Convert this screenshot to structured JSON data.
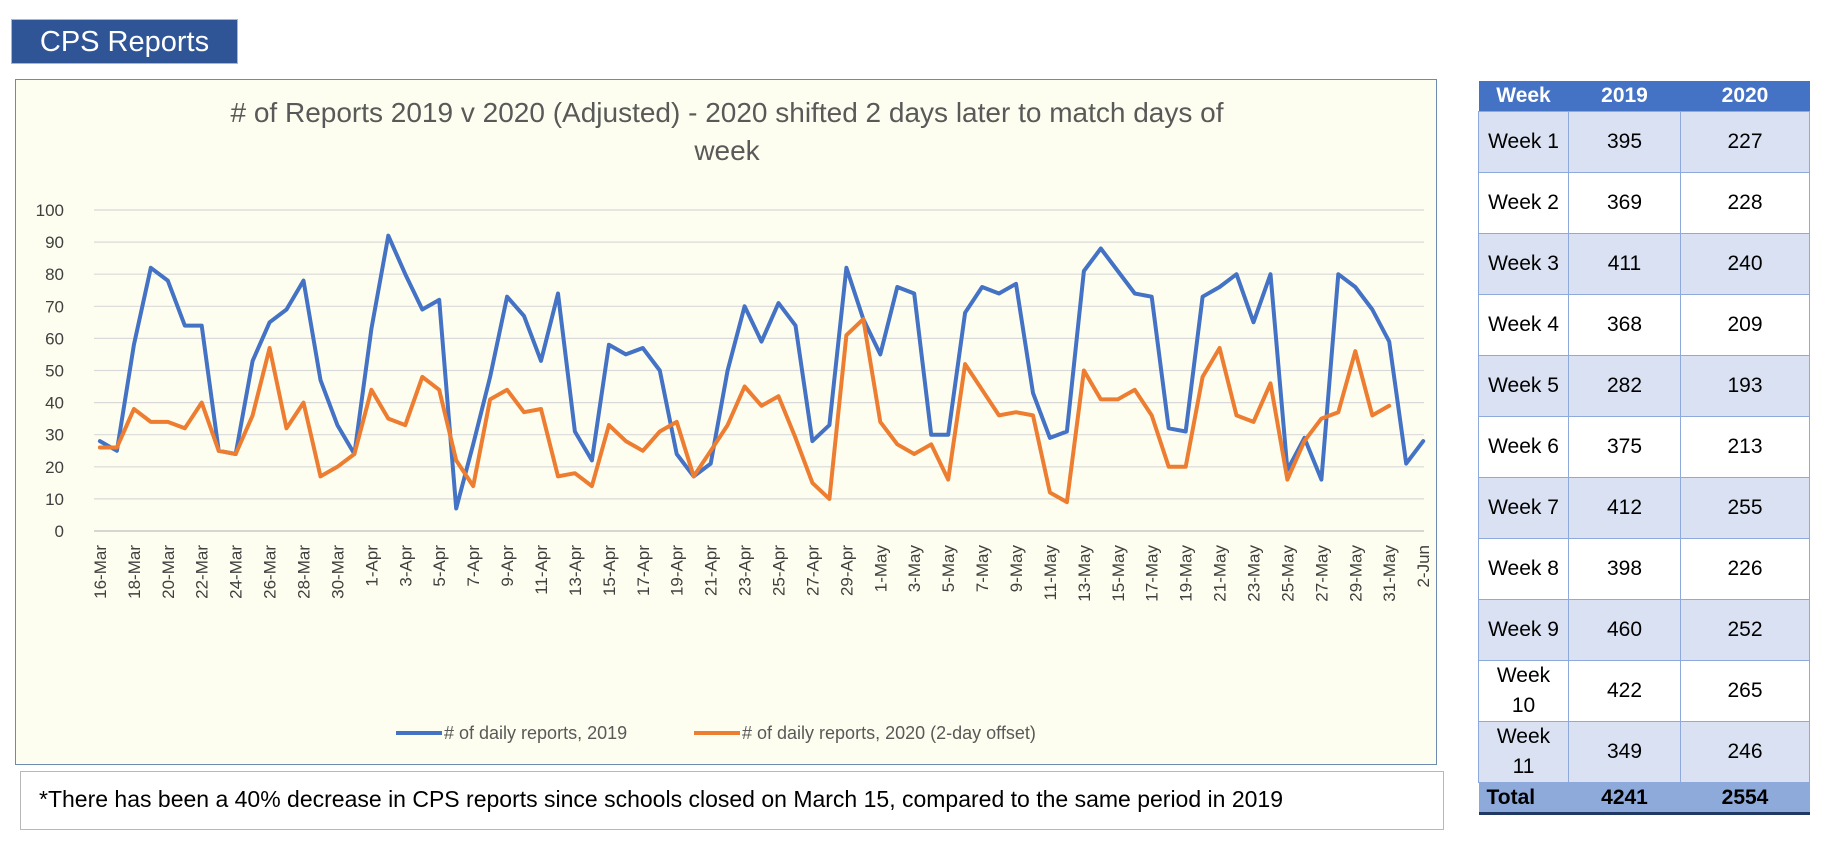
{
  "header": {
    "title": "CPS Reports"
  },
  "note": "*There has been a 40% decrease in CPS reports since schools closed on March 15, compared to the same period in 2019",
  "table": {
    "columns": [
      "Week",
      "2019",
      "2020"
    ],
    "rows": [
      {
        "week": "Week 1",
        "v2019": "395",
        "v2020": "227"
      },
      {
        "week": "Week 2",
        "v2019": "369",
        "v2020": "228"
      },
      {
        "week": "Week 3",
        "v2019": "411",
        "v2020": "240"
      },
      {
        "week": "Week 4",
        "v2019": "368",
        "v2020": "209"
      },
      {
        "week": "Week 5",
        "v2019": "282",
        "v2020": "193"
      },
      {
        "week": "Week 6",
        "v2019": "375",
        "v2020": "213"
      },
      {
        "week": "Week 7",
        "v2019": "412",
        "v2020": "255"
      },
      {
        "week": "Week 8",
        "v2019": "398",
        "v2020": "226"
      },
      {
        "week": "Week 9",
        "v2019": "460",
        "v2020": "252"
      },
      {
        "week": "Week 10",
        "v2019": "422",
        "v2020": "265"
      },
      {
        "week": "Week 11",
        "v2019": "349",
        "v2020": "246"
      }
    ],
    "total": {
      "label": "Total",
      "v2019": "4241",
      "v2020": "2554"
    }
  },
  "chart_data": {
    "type": "line",
    "title": "# of Reports 2019 v 2020 (Adjusted) - 2020 shifted 2 days later to match days of week",
    "ylim": [
      0,
      100
    ],
    "yticks": [
      0,
      10,
      20,
      30,
      40,
      50,
      60,
      70,
      80,
      90,
      100
    ],
    "grid": true,
    "legend_position": "bottom",
    "x": [
      "16-Mar",
      "17-Mar",
      "18-Mar",
      "19-Mar",
      "20-Mar",
      "21-Mar",
      "22-Mar",
      "23-Mar",
      "24-Mar",
      "25-Mar",
      "26-Mar",
      "27-Mar",
      "28-Mar",
      "29-Mar",
      "30-Mar",
      "31-Mar",
      "1-Apr",
      "2-Apr",
      "3-Apr",
      "4-Apr",
      "5-Apr",
      "6-Apr",
      "7-Apr",
      "8-Apr",
      "9-Apr",
      "10-Apr",
      "11-Apr",
      "12-Apr",
      "13-Apr",
      "14-Apr",
      "15-Apr",
      "16-Apr",
      "17-Apr",
      "18-Apr",
      "19-Apr",
      "20-Apr",
      "21-Apr",
      "22-Apr",
      "23-Apr",
      "24-Apr",
      "25-Apr",
      "26-Apr",
      "27-Apr",
      "28-Apr",
      "29-Apr",
      "30-Apr",
      "1-May",
      "2-May",
      "3-May",
      "4-May",
      "5-May",
      "6-May",
      "7-May",
      "8-May",
      "9-May",
      "10-May",
      "11-May",
      "12-May",
      "13-May",
      "14-May",
      "15-May",
      "16-May",
      "17-May",
      "18-May",
      "19-May",
      "20-May",
      "21-May",
      "22-May",
      "23-May",
      "24-May",
      "25-May",
      "26-May",
      "27-May",
      "28-May",
      "29-May",
      "30-May",
      "31-May",
      "1-Jun",
      "2-Jun"
    ],
    "tick_labels": [
      "16-Mar",
      "18-Mar",
      "20-Mar",
      "22-Mar",
      "24-Mar",
      "26-Mar",
      "28-Mar",
      "30-Mar",
      "1-Apr",
      "3-Apr",
      "5-Apr",
      "7-Apr",
      "9-Apr",
      "11-Apr",
      "13-Apr",
      "15-Apr",
      "17-Apr",
      "19-Apr",
      "21-Apr",
      "23-Apr",
      "25-Apr",
      "27-Apr",
      "29-Apr",
      "1-May",
      "3-May",
      "5-May",
      "7-May",
      "9-May",
      "11-May",
      "13-May",
      "15-May",
      "17-May",
      "19-May",
      "21-May",
      "23-May",
      "25-May",
      "27-May",
      "29-May",
      "31-May",
      "2-Jun"
    ],
    "series": [
      {
        "name": "# of daily reports, 2019",
        "color": "#4472c4",
        "values": [
          28,
          25,
          58,
          82,
          78,
          64,
          64,
          25,
          24,
          53,
          65,
          69,
          78,
          47,
          33,
          24,
          63,
          92,
          80,
          69,
          72,
          7,
          27,
          48,
          73,
          67,
          53,
          74,
          31,
          22,
          58,
          55,
          57,
          50,
          24,
          17,
          21,
          50,
          70,
          59,
          71,
          64,
          28,
          33,
          82,
          66,
          55,
          76,
          74,
          30,
          30,
          68,
          76,
          74,
          77,
          43,
          29,
          31,
          81,
          88,
          81,
          74,
          73,
          32,
          31,
          73,
          76,
          80,
          65,
          80,
          19,
          29,
          16,
          80,
          76,
          69,
          59,
          21,
          28
        ]
      },
      {
        "name": "# of daily reports, 2020 (2-day offset)",
        "color": "#ed7d31",
        "values": [
          26,
          26,
          38,
          34,
          34,
          32,
          40,
          25,
          24,
          36,
          57,
          32,
          40,
          17,
          20,
          24,
          44,
          35,
          33,
          48,
          44,
          22,
          14,
          41,
          44,
          37,
          38,
          17,
          18,
          14,
          33,
          28,
          25,
          31,
          34,
          17,
          25,
          33,
          45,
          39,
          42,
          29,
          15,
          10,
          61,
          66,
          34,
          27,
          24,
          27,
          16,
          52,
          44,
          36,
          37,
          36,
          12,
          9,
          50,
          41,
          41,
          44,
          36,
          20,
          20,
          48,
          57,
          36,
          34,
          46,
          16,
          28,
          35,
          37,
          56,
          36,
          39,
          null,
          null
        ]
      }
    ]
  }
}
